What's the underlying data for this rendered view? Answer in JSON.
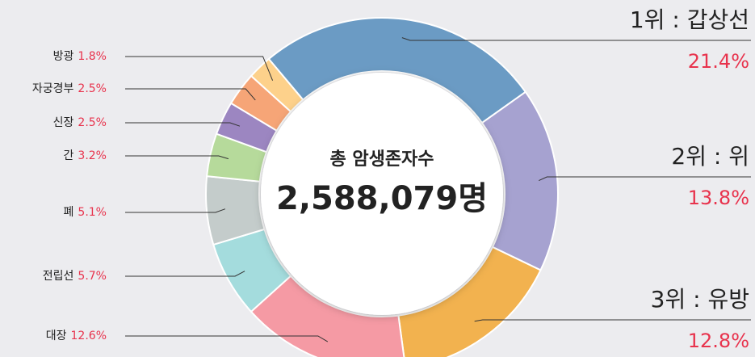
{
  "chart_data": {
    "type": "donut",
    "center_title": "총 암생존자수",
    "center_value": "2,588,079명",
    "categories": [
      "1위 : 갑상선",
      "2위 : 위",
      "3위 : 유방",
      "대장",
      "전립선",
      "폐",
      "간",
      "신장",
      "자궁경부",
      "방광"
    ],
    "values": [
      21.4,
      13.8,
      12.8,
      12.6,
      5.7,
      5.1,
      3.2,
      2.5,
      2.5,
      1.8
    ],
    "value_labels": [
      "21.4%",
      "13.8%",
      "12.8%",
      "12.6%",
      "5.7%",
      "5.1%",
      "3.2%",
      "2.5%",
      "2.5%",
      "1.8%"
    ],
    "colors": [
      "#6b9bc4",
      "#a6a2d0",
      "#f2b24f",
      "#f59aa4",
      "#a4dcdd",
      "#c4cccb",
      "#b6da9b",
      "#9c86c1",
      "#f6a577",
      "#fdd18b"
    ]
  }
}
